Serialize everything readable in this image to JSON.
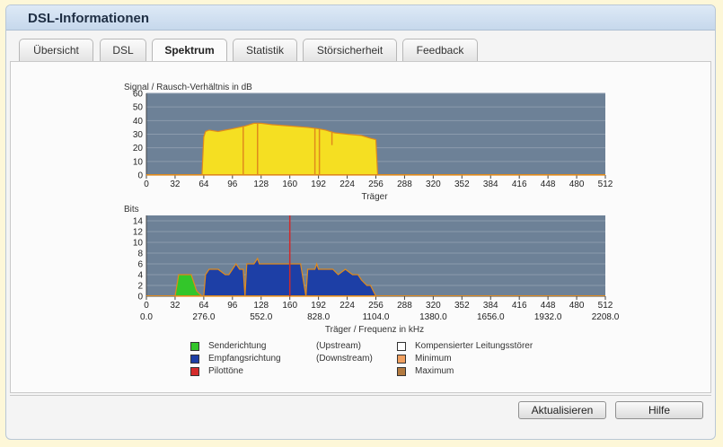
{
  "window": {
    "title": "DSL-Informationen"
  },
  "tabs": [
    {
      "label": "Übersicht",
      "active": false
    },
    {
      "label": "DSL",
      "active": false
    },
    {
      "label": "Spektrum",
      "active": true
    },
    {
      "label": "Statistik",
      "active": false
    },
    {
      "label": "Störsicherheit",
      "active": false
    },
    {
      "label": "Feedback",
      "active": false
    }
  ],
  "chart_data": [
    {
      "type": "area",
      "ylabel": "Signal / Rausch-Verhältnis in dB",
      "xlabel": "Träger",
      "ylim": [
        0,
        60
      ],
      "xlim": [
        0,
        512
      ],
      "yticks": [
        "0",
        "10",
        "20",
        "30",
        "40",
        "50",
        "60"
      ],
      "xticks": [
        "0",
        "32",
        "64",
        "96",
        "128",
        "160",
        "192",
        "224",
        "256",
        "288",
        "320",
        "352",
        "384",
        "416",
        "448",
        "480",
        "512"
      ],
      "grid": true,
      "colors": {
        "fill": "#f5df22",
        "line": "#e08a1c",
        "bg": "#6d8197"
      },
      "x": [
        0,
        62,
        64,
        66,
        70,
        80,
        96,
        110,
        120,
        128,
        140,
        160,
        180,
        192,
        200,
        210,
        224,
        240,
        250,
        256,
        258,
        512
      ],
      "y": [
        0,
        0,
        28,
        32,
        33,
        32,
        34,
        36,
        38,
        38,
        37,
        36,
        35,
        34,
        33,
        31,
        30,
        29,
        27,
        26,
        0,
        0
      ],
      "dips": [
        {
          "x": 108,
          "y": 0
        },
        {
          "x": 124,
          "y": 0
        },
        {
          "x": 188,
          "y": 0
        },
        {
          "x": 193,
          "y": 0
        },
        {
          "x": 207,
          "y": 22
        }
      ]
    },
    {
      "type": "area",
      "ylabel": "Bits",
      "xlabel": "Träger / Frequenz in kHz",
      "ylim": [
        0,
        15
      ],
      "xlim": [
        0,
        512
      ],
      "yticks": [
        "0",
        "2",
        "4",
        "6",
        "8",
        "10",
        "12",
        "14"
      ],
      "xticks": [
        "0",
        "32",
        "64",
        "96",
        "128",
        "160",
        "192",
        "224",
        "256",
        "288",
        "320",
        "352",
        "384",
        "416",
        "448",
        "480",
        "512"
      ],
      "freq_ticks": [
        "0.0",
        "276.0",
        "552.0",
        "828.0",
        "1104.0",
        "1380.0",
        "1656.0",
        "1932.0",
        "2208.0"
      ],
      "grid": true,
      "pilot_carrier": 160,
      "series": [
        {
          "name": "Senderichtung",
          "color": "#33c62a",
          "x": [
            32,
            36,
            50,
            56,
            62
          ],
          "y": [
            0,
            4,
            4,
            1,
            0
          ]
        },
        {
          "name": "Empfangsrichtung",
          "color": "#1d3fa6",
          "x": [
            64,
            66,
            70,
            80,
            88,
            92,
            96,
            100,
            104,
            108,
            110,
            112,
            116,
            120,
            124,
            126,
            128,
            140,
            150,
            158,
            164,
            172,
            178,
            180,
            184,
            188,
            190,
            192,
            196,
            200,
            208,
            214,
            222,
            230,
            236,
            240,
            246,
            250,
            256
          ],
          "y": [
            0,
            4,
            5,
            5,
            4,
            4,
            5,
            6,
            5,
            5,
            0,
            6,
            6,
            6,
            7,
            6,
            6,
            6,
            6,
            6,
            6,
            6,
            0,
            5,
            5,
            5,
            6,
            5,
            5,
            5,
            5,
            4,
            5,
            4,
            4,
            3,
            2,
            2,
            0
          ]
        }
      ],
      "colors": {
        "pilot": "#cf2b2b",
        "line": "#e08a1c",
        "bg": "#6d8197"
      }
    }
  ],
  "legend": {
    "sender": {
      "label": "Senderichtung",
      "note": "(Upstream)",
      "color": "#33c62a"
    },
    "receiver": {
      "label": "Empfangsrichtung",
      "note": "(Downstream)",
      "color": "#1d3fa6"
    },
    "pilot": {
      "label": "Pilottöne",
      "color": "#d42b2b"
    },
    "comp": {
      "label": "Kompensierter Leitungsstörer",
      "color": "#ffffff"
    },
    "min": {
      "label": "Minimum",
      "color": "#f0a060"
    },
    "max": {
      "label": "Maximum",
      "color": "#b27a40"
    }
  },
  "buttons": {
    "refresh": "Aktualisieren",
    "help": "Hilfe"
  }
}
